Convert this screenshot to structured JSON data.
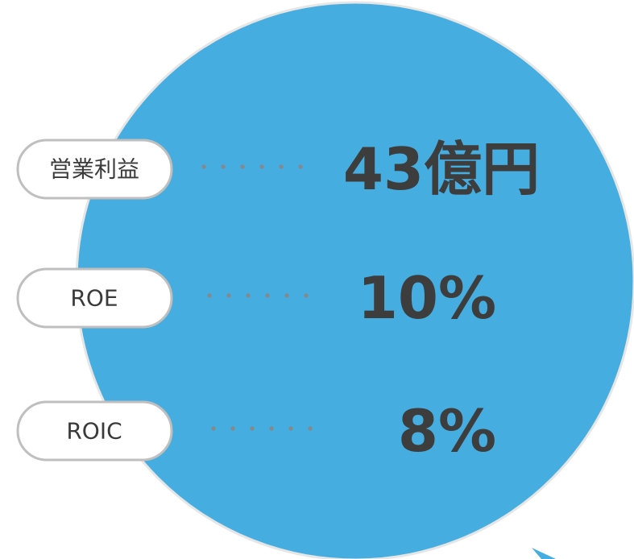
{
  "items": [
    {
      "label": "営業利益",
      "value": "43億円"
    },
    {
      "label": "ROE",
      "value": "10%"
    },
    {
      "label": "ROIC",
      "value": "8%"
    }
  ]
}
